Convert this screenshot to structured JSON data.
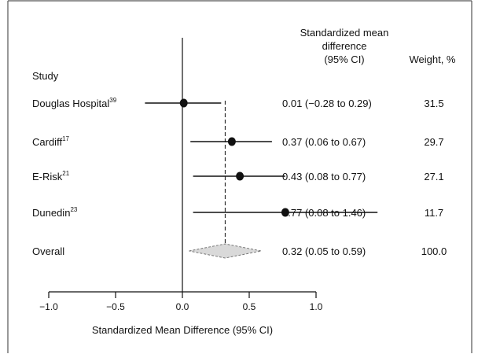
{
  "headers": {
    "study": "Study",
    "smd": [
      "Standardized mean",
      "difference",
      "(95% CI)"
    ],
    "weight": "Weight, %"
  },
  "chart_data": {
    "type": "forest",
    "xlabel": "Standardized Mean Difference (95% CI)",
    "xlim": [
      -1.0,
      1.0
    ],
    "x_ticks": [
      -1.0,
      -0.5,
      0.0,
      0.5,
      1.0
    ],
    "x_tick_labels": [
      "−1.0",
      "−0.5",
      "0.0",
      "0.5",
      "1.0"
    ],
    "reference_line": 0.0,
    "summary_line": 0.32,
    "studies": [
      {
        "name": "Douglas Hospital",
        "ref": "39",
        "estimate": 0.01,
        "ci_low": -0.28,
        "ci_high": 0.29,
        "ci_text": "0.01 (−0.28 to 0.29)",
        "weight": "31.5"
      },
      {
        "name": "Cardiff",
        "ref": "17",
        "estimate": 0.37,
        "ci_low": 0.06,
        "ci_high": 0.67,
        "ci_text": "0.37 (0.06 to 0.67)",
        "weight": "29.7"
      },
      {
        "name": "E-Risk",
        "ref": "21",
        "estimate": 0.43,
        "ci_low": 0.08,
        "ci_high": 0.77,
        "ci_text": "0.43 (0.08 to 0.77)",
        "weight": "27.1"
      },
      {
        "name": "Dunedin",
        "ref": "23",
        "estimate": 0.77,
        "ci_low": 0.08,
        "ci_high": 1.46,
        "ci_text": "0.77 (0.08 to 1.46)",
        "weight": "11.7"
      }
    ],
    "overall": {
      "name": "Overall",
      "estimate": 0.32,
      "ci_low": 0.05,
      "ci_high": 0.59,
      "ci_text": "0.32 (0.05 to 0.59)",
      "weight": "100.0"
    }
  },
  "colors": {
    "frame": "#555555",
    "marks": "#111111",
    "diamond_fill": "#d9d9d9",
    "diamond_stroke": "#777777"
  }
}
